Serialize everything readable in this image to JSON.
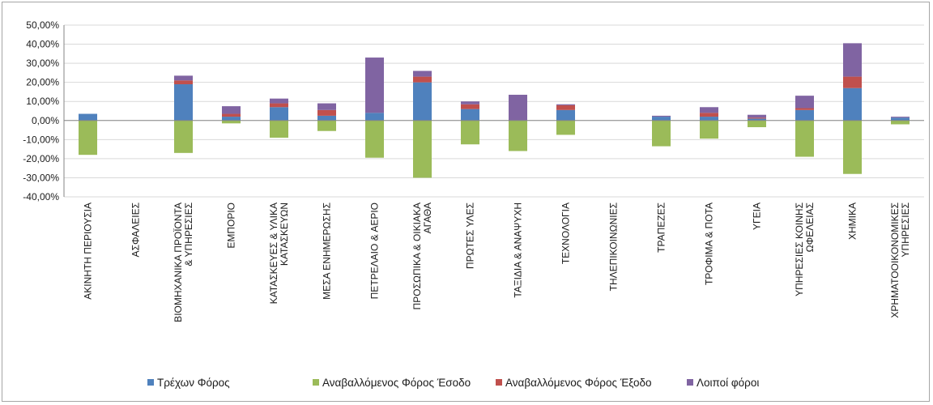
{
  "chart_data": {
    "type": "bar",
    "stacked": true,
    "title": "",
    "xlabel": "",
    "ylabel": "",
    "ylim": [
      -0.4,
      0.5
    ],
    "y_ticks": [
      "50,00%",
      "40,00%",
      "30,00%",
      "20,00%",
      "10,00%",
      "0,00%",
      "-10,00%",
      "-20,00%",
      "-30,00%",
      "-40,00%"
    ],
    "grid": true,
    "legend_position": "bottom",
    "categories": [
      [
        "ΑΚΙΝΗΤΗ ΠΕΡΙΟΥΣΙΑ"
      ],
      [
        "ΑΣΦΑΛΕΙΕΣ"
      ],
      [
        "ΒΙΟΜΗΧΑΝΙΚΑ ΠΡΟΪΟΝΤΑ",
        "& ΥΠΗΡΕΣΙΕΣ"
      ],
      [
        "ΕΜΠΟΡΙΟ"
      ],
      [
        "ΚΑΤΑΣΚΕΥΕΣ & ΥΛΙΚΑ",
        "ΚΑΤΑΣΚΕΥΩΝ"
      ],
      [
        "ΜΕΣΑ ΕΝΗΜΕΡΩΣΗΣ"
      ],
      [
        "ΠΕΤΡΕΛΑΙΟ & ΑΕΡΙΟ"
      ],
      [
        "ΠΡΟΣΩΠΙΚΑ & ΟΙΚΙΑΚΑ",
        "ΑΓΑΘΑ"
      ],
      [
        "ΠΡΩΤΕΣ ΥΛΕΣ"
      ],
      [
        "ΤΑΞΙΔΙΑ & ΑΝΑΨΥΧΗ"
      ],
      [
        "ΤΕΧΝΟΛΟΓΙΑ"
      ],
      [
        "ΤΗΛΕΠΙΚΟΙΝΩΝΙΕΣ"
      ],
      [
        "ΤΡΑΠΕΖΕΣ"
      ],
      [
        "ΤΡΟΦΙΜΑ & ΠΟΤΑ"
      ],
      [
        "ΥΓΕΙΑ"
      ],
      [
        "ΥΠΗΡΕΣΙΕΣ ΚΟΙΝΗΣ",
        "ΩΦΕΛΕΙΑΣ"
      ],
      [
        "ΧΗΜΙΚΑ"
      ],
      [
        "ΧΡΗΜΑΤΟΟΙΚΟΝΟΜΙΚΕΣ",
        "ΥΠΗΡΕΣΙΕΣ"
      ]
    ],
    "series": [
      {
        "name": "Τρέχων Φόρος",
        "color": "#4f81bd",
        "values": [
          0.035,
          0,
          0.19,
          0.02,
          0.07,
          0.025,
          0.04,
          0.2,
          0.06,
          0.0,
          0.055,
          0,
          0.02,
          0.02,
          0.01,
          0.055,
          0.17,
          0.015
        ]
      },
      {
        "name": "Αναβαλλόμενος Φόρος Έσοδο",
        "color": "#9bbb59",
        "values": [
          -0.18,
          0,
          -0.17,
          -0.015,
          -0.09,
          -0.055,
          -0.195,
          -0.3,
          -0.125,
          -0.16,
          -0.075,
          0,
          -0.135,
          -0.095,
          -0.035,
          -0.19,
          -0.28,
          -0.02
        ]
      },
      {
        "name": "Αναβαλλόμενος Φόρος Έξοδο",
        "color": "#c0504d",
        "values": [
          0,
          0,
          0.02,
          0.015,
          0.02,
          0.03,
          0.0,
          0.03,
          0.025,
          0.0,
          0.025,
          0,
          0.0,
          0.02,
          0.005,
          0.01,
          0.06,
          0.0
        ]
      },
      {
        "name": "Λοιποί φόροι",
        "color": "#8064a2",
        "values": [
          0,
          0,
          0.025,
          0.04,
          0.025,
          0.035,
          0.29,
          0.03,
          0.015,
          0.135,
          0.005,
          0,
          0.005,
          0.03,
          0.015,
          0.065,
          0.175,
          0.005
        ]
      }
    ]
  }
}
